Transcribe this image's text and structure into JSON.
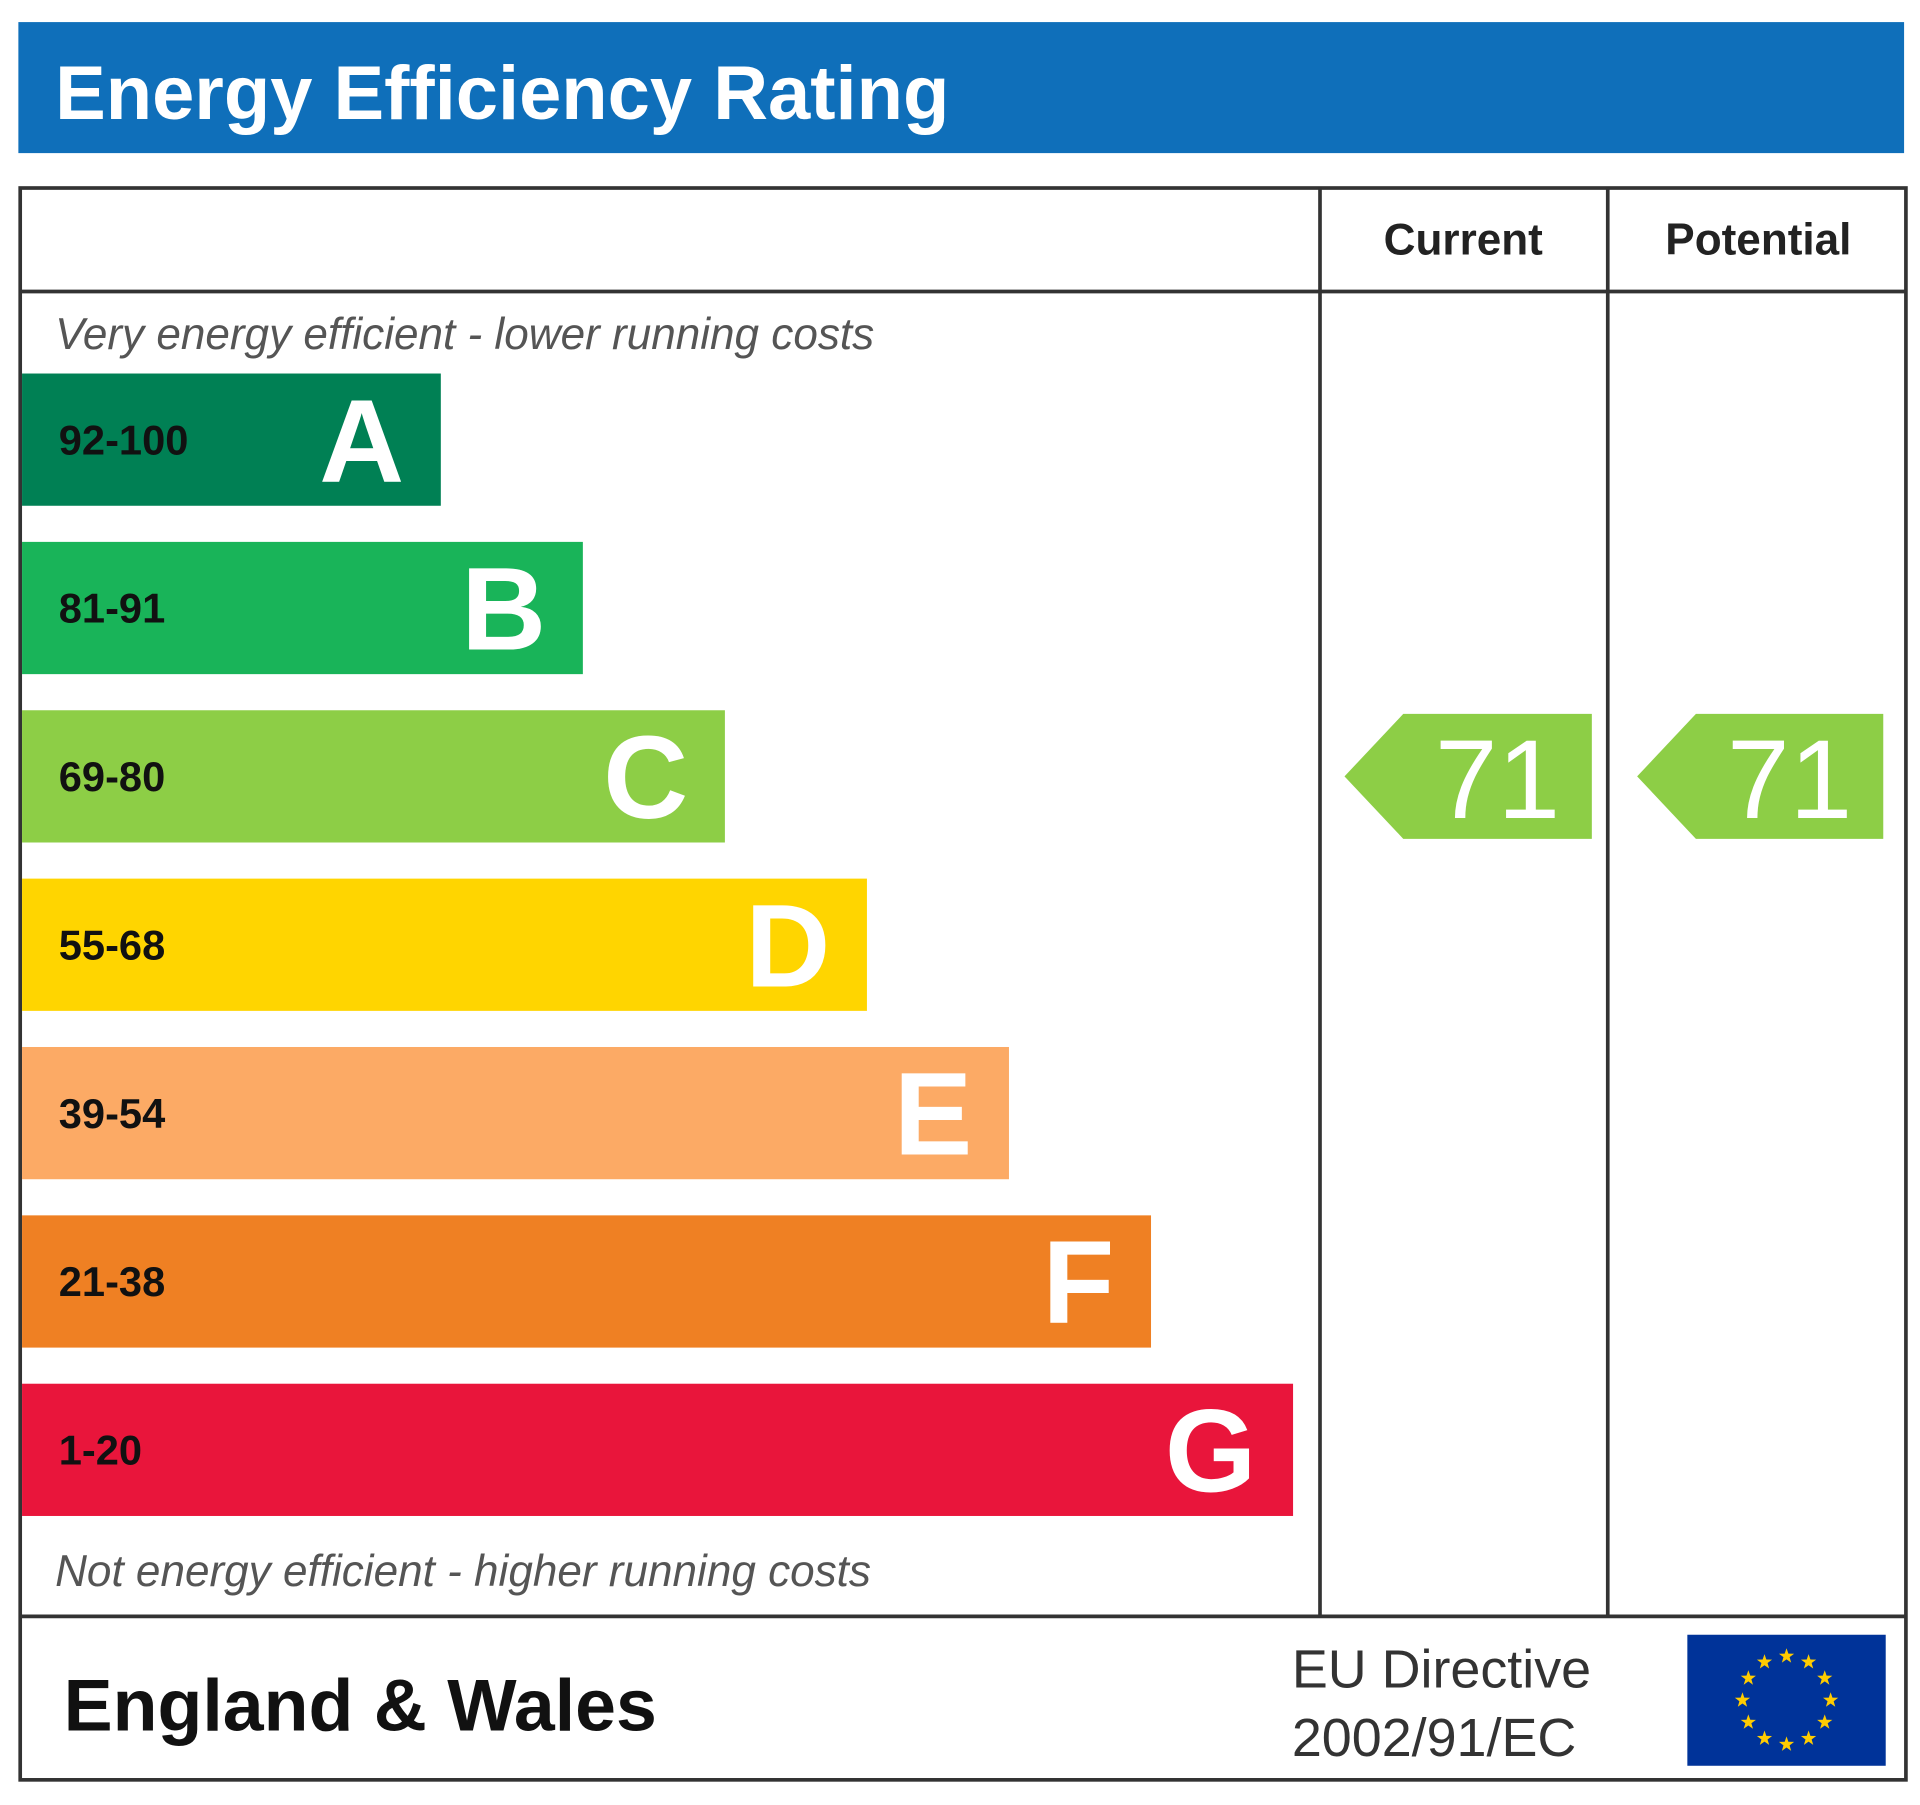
{
  "header": {
    "title": "Energy Efficiency Rating"
  },
  "columns": [
    "Current",
    "Potential"
  ],
  "top_note": "Very energy efficient - lower running costs",
  "bottom_note": "Not energy efficient - higher running costs",
  "bands": [
    {
      "range": "92-100",
      "letter": "A",
      "color": "#008054"
    },
    {
      "range": "81-91",
      "letter": "B",
      "color": "#19b459"
    },
    {
      "range": "69-80",
      "letter": "C",
      "color": "#8dce46"
    },
    {
      "range": "55-68",
      "letter": "D",
      "color": "#ffd500"
    },
    {
      "range": "39-54",
      "letter": "E",
      "color": "#fcaa65"
    },
    {
      "range": "21-38",
      "letter": "F",
      "color": "#ef8023"
    },
    {
      "range": "1-20",
      "letter": "G",
      "color": "#e9153b"
    }
  ],
  "ratings": {
    "current": 71,
    "potential": 71
  },
  "footer": {
    "region": "England & Wales",
    "directive": [
      "EU Directive",
      "2002/91/EC"
    ]
  }
}
